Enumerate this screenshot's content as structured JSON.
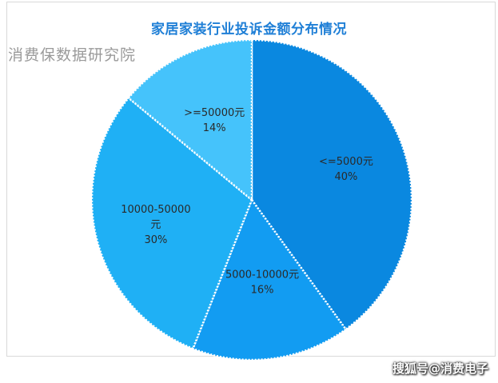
{
  "chart_data": {
    "type": "pie",
    "title": "家居家装行业投诉金额分布情况",
    "slices": [
      {
        "label": "<=5000元",
        "value": 40,
        "percent_label": "40%",
        "color": "#0a88e0"
      },
      {
        "label": "5000-10000元",
        "value": 16,
        "percent_label": "16%",
        "color": "#129cf2"
      },
      {
        "label": "10000-50000元",
        "value": 30,
        "percent_label": "30%",
        "color": "#1fb0f5"
      },
      {
        "label": ">=50000元",
        "value": 14,
        "percent_label": "14%",
        "color": "#45c3fb"
      }
    ],
    "legend": "none",
    "slice_border": "white-dotted"
  },
  "watermark": "消费保数据研究院",
  "credit": "搜狐号@消费电子"
}
